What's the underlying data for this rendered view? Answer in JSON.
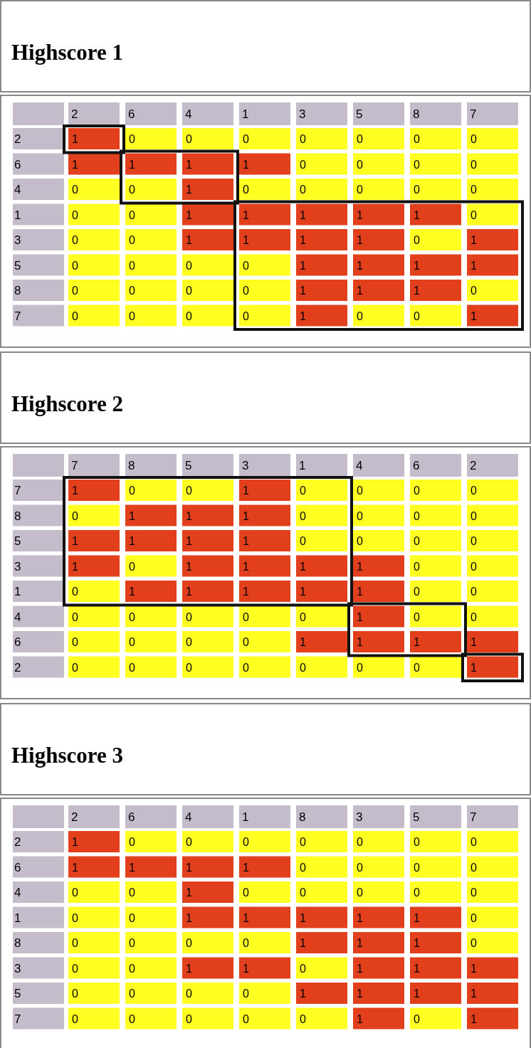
{
  "chart_data": [
    {
      "type": "heatmap",
      "title": "Highscore 1",
      "categories": [
        "2",
        "6",
        "4",
        "1",
        "3",
        "5",
        "8",
        "7"
      ],
      "y_categories": [
        "2",
        "6",
        "4",
        "1",
        "3",
        "5",
        "8",
        "7"
      ],
      "colors": [
        "#ffff22",
        "#e2401c"
      ],
      "data_labels": true,
      "cells": [
        [
          1,
          0,
          0,
          0,
          0,
          0,
          0,
          0
        ],
        [
          1,
          1,
          1,
          1,
          0,
          0,
          0,
          0
        ],
        [
          0,
          0,
          1,
          0,
          0,
          0,
          0,
          0
        ],
        [
          0,
          0,
          1,
          1,
          1,
          1,
          1,
          0
        ],
        [
          0,
          0,
          1,
          1,
          1,
          1,
          0,
          1
        ],
        [
          0,
          0,
          0,
          0,
          1,
          1,
          1,
          1
        ],
        [
          0,
          0,
          0,
          0,
          1,
          1,
          1,
          0
        ],
        [
          0,
          0,
          0,
          0,
          1,
          0,
          0,
          1
        ]
      ]
    },
    {
      "type": "heatmap",
      "title": "Highscore 2",
      "categories": [
        "7",
        "8",
        "5",
        "3",
        "1",
        "4",
        "6",
        "2"
      ],
      "y_categories": [
        "7",
        "8",
        "5",
        "3",
        "1",
        "4",
        "6",
        "2"
      ],
      "colors": [
        "#ffff22",
        "#e2401c"
      ],
      "data_labels": true,
      "cells": [
        [
          1,
          0,
          0,
          1,
          0,
          0,
          0,
          0
        ],
        [
          0,
          1,
          1,
          1,
          0,
          0,
          0,
          0
        ],
        [
          1,
          1,
          1,
          1,
          0,
          0,
          0,
          0
        ],
        [
          1,
          0,
          1,
          1,
          1,
          1,
          0,
          0
        ],
        [
          0,
          1,
          1,
          1,
          1,
          1,
          0,
          0
        ],
        [
          0,
          0,
          0,
          0,
          0,
          1,
          0,
          0
        ],
        [
          0,
          0,
          0,
          0,
          1,
          1,
          1,
          1
        ],
        [
          0,
          0,
          0,
          0,
          0,
          0,
          0,
          1
        ]
      ]
    },
    {
      "type": "heatmap",
      "title": "Highscore 3",
      "categories": [
        "2",
        "6",
        "4",
        "1",
        "8",
        "3",
        "5",
        "7"
      ],
      "y_categories": [
        "2",
        "6",
        "4",
        "1",
        "8",
        "3",
        "5",
        "7"
      ],
      "colors": [
        "#ffff22",
        "#e2401c"
      ],
      "data_labels": true,
      "cells": [
        [
          1,
          0,
          0,
          0,
          0,
          0,
          0,
          0
        ],
        [
          1,
          1,
          1,
          1,
          0,
          0,
          0,
          0
        ],
        [
          0,
          0,
          1,
          0,
          0,
          0,
          0,
          0
        ],
        [
          0,
          0,
          1,
          1,
          1,
          1,
          1,
          0
        ],
        [
          0,
          0,
          0,
          0,
          1,
          1,
          1,
          0
        ],
        [
          0,
          0,
          1,
          1,
          0,
          1,
          1,
          1
        ],
        [
          0,
          0,
          0,
          0,
          1,
          1,
          1,
          1
        ],
        [
          0,
          0,
          0,
          0,
          0,
          1,
          0,
          1
        ]
      ]
    }
  ]
}
